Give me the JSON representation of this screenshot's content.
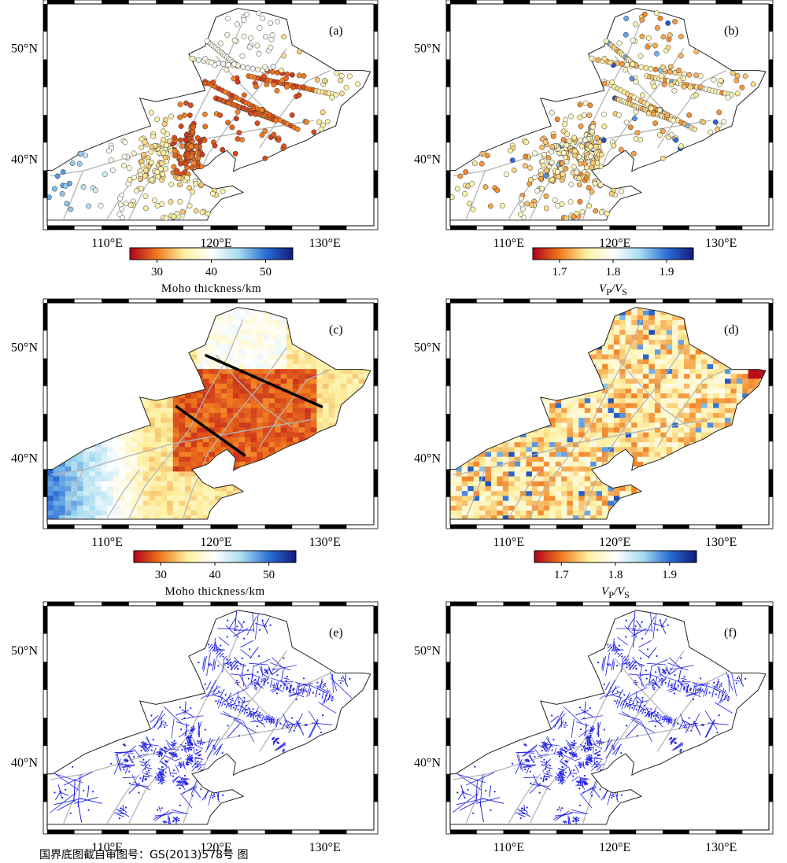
{
  "panels": [
    {
      "id": "a",
      "label": "(a)",
      "kind": "points",
      "variable": "moho"
    },
    {
      "id": "b",
      "label": "(b)",
      "kind": "points",
      "variable": "vpvs"
    },
    {
      "id": "c",
      "label": "(c)",
      "kind": "grid",
      "variable": "moho",
      "profiles": true
    },
    {
      "id": "d",
      "label": "(d)",
      "kind": "grid",
      "variable": "vpvs"
    },
    {
      "id": "e",
      "label": "(e)",
      "kind": "voronoi"
    },
    {
      "id": "f",
      "label": "(f)",
      "kind": "voronoi"
    }
  ],
  "axes": {
    "lat_labels": [
      "50°N",
      "40°N"
    ],
    "lon_labels": [
      "110°E",
      "120°E",
      "130°E"
    ],
    "lon_range": [
      104.5,
      134.5
    ],
    "lat_range": [
      34,
      54
    ]
  },
  "colorbars": {
    "moho": {
      "ticks": [
        "30",
        "40",
        "50"
      ],
      "title": "Moho thickness/km",
      "range": [
        25,
        55
      ]
    },
    "vpvs": {
      "ticks": [
        "1.7",
        "1.8",
        "1.9"
      ],
      "title_main": "V",
      "title_sub1": "P",
      "title_sep": "/",
      "title_main2": "V",
      "title_sub2": "S",
      "range": [
        1.65,
        1.95
      ]
    }
  },
  "colors": {
    "red": "#b2001a",
    "orange": "#f07a1e",
    "yellow": "#fdf0a0",
    "lightblue": "#a8dcf0",
    "blue": "#2b6fd6",
    "darkblue": "#101a7e",
    "voronoi": "#2323e6",
    "faults": "#b4b4b4"
  },
  "footnote": "国界底图截自审图号：GS(2013)578号 图"
}
